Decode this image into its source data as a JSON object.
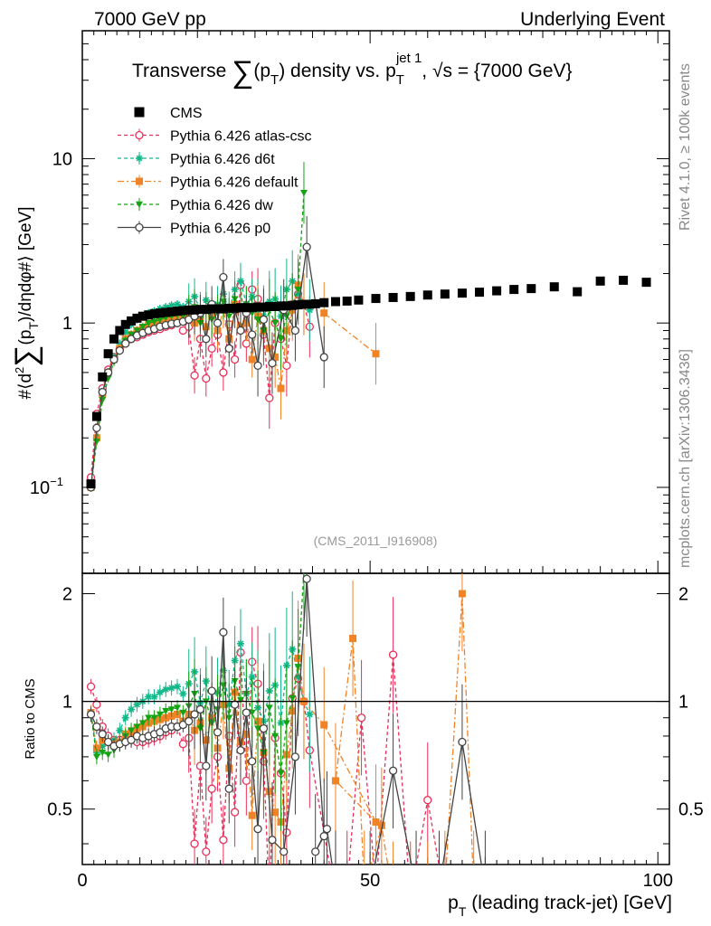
{
  "header": {
    "left": "7000 GeV pp",
    "right": "Underlying Event"
  },
  "side_labels": {
    "rivet": "Rivet 4.1.0, ≥ 100k events",
    "site": "mcplots.cern.ch [arXiv:1306.3436]"
  },
  "chart_data": {
    "type": "line",
    "title": "Transverse ∑(p_T) density vs. p_T^jet 1, √s = {7000 GeV}",
    "title_parts": {
      "main_a": "Transverse ",
      "sum": "∑",
      "main_b": "(p",
      "sub_t": "T",
      "main_c": ") density vs. p",
      "sub_t2": "T",
      "sup_jet": "jet 1",
      "main_d": ", √s = {7000 GeV}"
    },
    "analysis_id": "(CMS_2011_I916908)",
    "xlabel": "p_T (leading track-jet) [GeV]",
    "xlabel_parts": {
      "p": "p",
      "sub": "T",
      "rest": " (leading track-jet) [GeV]"
    },
    "ylabel": "#⟨d²∑(p_T)/dηdφ#⟩ [GeV]",
    "ylabel_parts": {
      "a": "#⟨d",
      "sq": "2",
      "sum": "∑",
      "b": "(p",
      "sub": "T",
      "c": ")/dηdφ#⟩ [GeV]"
    },
    "ratio_ylabel": "Ratio to CMS",
    "xlim": [
      0,
      102
    ],
    "ylim": [
      0.03,
      60
    ],
    "ratio_ylim": [
      0.35,
      2.28
    ],
    "y_scale": "log",
    "x_ticks": [
      0,
      50,
      100
    ],
    "y_ticks": [
      {
        "value": 0.1,
        "label": "10",
        "sup": "−1"
      },
      {
        "value": 1,
        "label": "1",
        "sup": ""
      },
      {
        "value": 10,
        "label": "10",
        "sup": ""
      }
    ],
    "ratio_ticks": [
      0.5,
      1,
      2
    ],
    "legend_position": "top-left",
    "series": [
      {
        "name": "CMS",
        "color": "#000000",
        "marker": "square",
        "dash": "none",
        "x": [
          1.5,
          2.5,
          3.5,
          4.5,
          5.5,
          6.5,
          7.5,
          8.5,
          9.5,
          10.5,
          11.5,
          12.5,
          13.5,
          14.5,
          15.5,
          16.5,
          17.5,
          18.5,
          19.5,
          20.5,
          21.5,
          22.5,
          23.5,
          24.5,
          25.5,
          26.5,
          27.5,
          28.5,
          29.5,
          30.5,
          31.5,
          32.5,
          33.5,
          34.5,
          35.5,
          36.5,
          37.5,
          38.5,
          39.5,
          40.5,
          42,
          44,
          46,
          48,
          51,
          54,
          57,
          60,
          63,
          66,
          69,
          72,
          75,
          78,
          82,
          86,
          90,
          94,
          98
        ],
        "y": [
          0.105,
          0.27,
          0.47,
          0.65,
          0.8,
          0.9,
          0.98,
          1.03,
          1.07,
          1.1,
          1.12,
          1.14,
          1.15,
          1.16,
          1.17,
          1.18,
          1.19,
          1.2,
          1.2,
          1.21,
          1.21,
          1.22,
          1.22,
          1.22,
          1.23,
          1.23,
          1.24,
          1.24,
          1.24,
          1.25,
          1.25,
          1.26,
          1.26,
          1.27,
          1.27,
          1.28,
          1.29,
          1.3,
          1.3,
          1.31,
          1.33,
          1.35,
          1.36,
          1.38,
          1.41,
          1.43,
          1.45,
          1.48,
          1.5,
          1.52,
          1.54,
          1.57,
          1.6,
          1.62,
          1.66,
          1.55,
          1.8,
          1.82,
          1.77
        ]
      },
      {
        "name": "Pythia 6.426 atlas-csc",
        "color": "#e8305a",
        "marker": "open-circle",
        "dash": "4,3",
        "x": [
          1.5,
          2.5,
          3.5,
          4.5,
          5.5,
          6.5,
          7.5,
          8.5,
          9.5,
          10.5,
          11.5,
          12.5,
          13.5,
          14.5,
          15.5,
          16.5,
          17.5,
          18.5,
          19.5,
          20.5,
          21.5,
          22.5,
          23.5,
          24.5,
          25.5,
          26.5,
          27.5,
          28.5,
          29.5,
          30.5,
          31.5,
          32.5,
          33.5,
          34.5,
          35.5,
          36.5,
          37.5,
          38.5,
          39.5
        ],
        "y": [
          0.115,
          0.28,
          0.4,
          0.52,
          0.62,
          0.7,
          0.76,
          0.8,
          0.82,
          0.85,
          0.88,
          0.9,
          0.92,
          0.95,
          0.97,
          1.0,
          0.9,
          0.95,
          0.48,
          0.8,
          0.46,
          0.7,
          0.85,
          0.5,
          0.98,
          0.6,
          1.7,
          0.75,
          1.6,
          1.4,
          0.85,
          0.35,
          1.0,
          0.8,
          0.55,
          1.3,
          1.5,
          1.3,
          0.95
        ],
        "ratio": [
          1.1,
          0.98,
          0.85,
          0.8,
          0.78,
          0.78,
          0.78,
          0.78,
          0.77,
          0.77,
          0.78,
          0.79,
          0.8,
          0.82,
          0.83,
          0.85,
          0.76,
          0.79,
          0.4,
          0.66,
          0.38,
          0.57,
          0.7,
          0.41,
          0.8,
          0.49,
          1.37,
          0.6,
          1.29,
          1.12,
          0.68,
          0.28,
          0.79,
          0.63,
          0.43,
          1.02,
          1.16,
          1.0,
          0.73
        ],
        "ratio_extra_x": [
          44,
          46,
          48.5,
          51,
          54,
          57,
          60,
          63
        ],
        "ratio_extra": [
          0.28,
          0.3,
          0.9,
          0.3,
          1.35,
          0.28,
          0.53,
          0.28
        ]
      },
      {
        "name": "Pythia 6.426 d6t",
        "color": "#12b88a",
        "marker": "star",
        "dash": "4,3",
        "x": [
          1.5,
          2.5,
          3.5,
          4.5,
          5.5,
          6.5,
          7.5,
          8.5,
          9.5,
          10.5,
          11.5,
          12.5,
          13.5,
          14.5,
          15.5,
          16.5,
          17.5,
          18.5,
          19.5,
          20.5,
          21.5,
          22.5,
          23.5,
          24.5,
          25.5,
          26.5,
          27.5,
          28.5,
          29.5,
          30.5,
          31.5,
          32.5,
          33.5,
          34.5,
          35.5,
          36.5,
          37.5,
          38.5,
          39.5
        ],
        "y": [
          0.1,
          0.2,
          0.36,
          0.5,
          0.62,
          0.75,
          0.88,
          0.98,
          1.05,
          1.1,
          1.15,
          1.18,
          1.22,
          1.25,
          1.28,
          1.3,
          1.25,
          1.35,
          1.45,
          1.2,
          1.38,
          1.1,
          1.3,
          1.5,
          1.2,
          1.6,
          1.8,
          1.3,
          1.45,
          1.2,
          1.1,
          1.35,
          1.4,
          1.1,
          1.6,
          1.8,
          1.5,
          1.3,
          1.2
        ],
        "ratio": [
          0.93,
          0.72,
          0.75,
          0.77,
          0.78,
          0.83,
          0.9,
          0.95,
          0.98,
          1.0,
          1.03,
          1.03,
          1.06,
          1.08,
          1.09,
          1.1,
          1.05,
          1.12,
          1.21,
          0.99,
          1.14,
          0.9,
          1.06,
          1.22,
          0.98,
          1.3,
          1.45,
          1.05,
          1.17,
          0.96,
          0.88,
          1.07,
          1.11,
          0.87,
          1.26,
          1.4,
          1.17,
          1.0,
          0.92
        ]
      },
      {
        "name": "Pythia 6.426 default",
        "color": "#f08326",
        "marker": "square",
        "dash": "7,3,2,3",
        "x": [
          1.5,
          2.5,
          3.5,
          4.5,
          5.5,
          6.5,
          7.5,
          8.5,
          9.5,
          10.5,
          11.5,
          12.5,
          13.5,
          14.5,
          15.5,
          16.5,
          17.5,
          18.5,
          19.5,
          20.5,
          21.5,
          22.5,
          23.5,
          24.5,
          25.5,
          26.5,
          27.5,
          28.5,
          29.5,
          30.5,
          31.5,
          32.5,
          33.5,
          34.5,
          35.5,
          36.5,
          37.5,
          38.5,
          42,
          51
        ],
        "y": [
          0.1,
          0.2,
          0.37,
          0.5,
          0.6,
          0.7,
          0.8,
          0.85,
          0.9,
          0.93,
          0.97,
          1.0,
          1.02,
          1.05,
          1.06,
          1.08,
          1.05,
          1.1,
          1.0,
          1.05,
          0.95,
          1.1,
          0.9,
          1.2,
          0.8,
          1.3,
          0.95,
          1.0,
          0.6,
          1.1,
          0.9,
          0.7,
          0.62,
          0.4,
          0.9,
          1.2,
          1.7,
          1.3,
          1.15,
          0.65
        ],
        "ratio": [
          0.93,
          0.74,
          0.78,
          0.77,
          0.76,
          0.77,
          0.81,
          0.82,
          0.84,
          0.85,
          0.87,
          0.88,
          0.89,
          0.9,
          0.91,
          0.92,
          0.88,
          0.92,
          0.83,
          0.87,
          0.78,
          0.9,
          0.74,
          0.98,
          0.65,
          1.06,
          0.77,
          0.81,
          0.48,
          0.88,
          0.72,
          0.56,
          0.49,
          0.46,
          0.71,
          0.94,
          1.32,
          1.0,
          0.86,
          0.46
        ],
        "ratio_extra_x": [
          44,
          47,
          49,
          52,
          54,
          57,
          60,
          63,
          66,
          68
        ],
        "ratio_extra": [
          0.6,
          1.5,
          0.3,
          0.45,
          0.28,
          0.28,
          0.28,
          0.3,
          2.0,
          0.3
        ]
      },
      {
        "name": "Pythia 6.426 dw",
        "color": "#14a312",
        "marker": "triangle-down",
        "dash": "4,3",
        "x": [
          1.5,
          2.5,
          3.5,
          4.5,
          5.5,
          6.5,
          7.5,
          8.5,
          9.5,
          10.5,
          11.5,
          12.5,
          13.5,
          14.5,
          15.5,
          16.5,
          17.5,
          18.5,
          19.5,
          20.5,
          21.5,
          22.5,
          23.5,
          24.5,
          25.5,
          26.5,
          27.5,
          28.5,
          29.5,
          30.5,
          31.5,
          32.5,
          33.5,
          34.5,
          35.5,
          36.5,
          37.5,
          38.5
        ],
        "y": [
          0.1,
          0.19,
          0.34,
          0.46,
          0.58,
          0.68,
          0.78,
          0.85,
          0.9,
          0.95,
          1.0,
          1.02,
          1.05,
          1.08,
          1.1,
          1.12,
          1.1,
          1.15,
          1.25,
          1.0,
          1.2,
          1.05,
          1.15,
          1.35,
          1.1,
          1.4,
          1.25,
          1.3,
          1.15,
          1.05,
          0.9,
          1.2,
          1.0,
          0.8,
          1.1,
          1.3,
          1.6,
          6.2
        ],
        "ratio": [
          0.92,
          0.7,
          0.72,
          0.71,
          0.73,
          0.76,
          0.8,
          0.83,
          0.85,
          0.87,
          0.9,
          0.9,
          0.92,
          0.94,
          0.95,
          0.96,
          0.93,
          0.97,
          1.05,
          0.84,
          1.0,
          0.87,
          0.95,
          1.11,
          0.9,
          1.14,
          1.01,
          1.05,
          0.93,
          0.84,
          0.72,
          0.96,
          0.8,
          0.63,
          0.87,
          1.02,
          1.25,
          2.3
        ]
      },
      {
        "name": "Pythia 6.426 p0",
        "color": "#444444",
        "marker": "open-circle",
        "dash": "none",
        "x": [
          1.5,
          2.5,
          3.5,
          4.5,
          5.5,
          6.5,
          7.5,
          8.5,
          9.5,
          10.5,
          11.5,
          12.5,
          13.5,
          14.5,
          15.5,
          16.5,
          17.5,
          18.5,
          19.5,
          20.5,
          21.5,
          22.5,
          23.5,
          24.5,
          25.5,
          26.5,
          27.5,
          28.5,
          29.5,
          30.5,
          31.5,
          33,
          35,
          37,
          39,
          42
        ],
        "y": [
          0.1,
          0.23,
          0.38,
          0.5,
          0.6,
          0.68,
          0.75,
          0.8,
          0.84,
          0.87,
          0.9,
          0.92,
          0.95,
          0.97,
          0.99,
          1.0,
          1.02,
          1.05,
          1.1,
          1.15,
          0.8,
          1.3,
          1.0,
          1.9,
          0.7,
          1.2,
          0.9,
          1.15,
          0.85,
          0.55,
          1.05,
          0.57,
          1.2,
          0.9,
          2.9,
          0.62
        ],
        "ratio": [
          0.92,
          0.85,
          0.81,
          0.77,
          0.75,
          0.76,
          0.77,
          0.78,
          0.8,
          0.79,
          0.8,
          0.81,
          0.82,
          0.84,
          0.85,
          0.85,
          0.86,
          0.88,
          0.92,
          0.95,
          0.66,
          1.07,
          0.82,
          1.56,
          0.57,
          0.98,
          0.73,
          0.93,
          0.68,
          0.44,
          0.84,
          0.41,
          0.38,
          0.7,
          2.2,
          0.42
        ],
        "ratio_extra_x": [
          40.5,
          42.5,
          44,
          50,
          54,
          58,
          62,
          66,
          70
        ],
        "ratio_extra": [
          0.38,
          0.44,
          0.3,
          0.3,
          0.64,
          0.3,
          0.3,
          0.77,
          0.3
        ]
      }
    ]
  }
}
